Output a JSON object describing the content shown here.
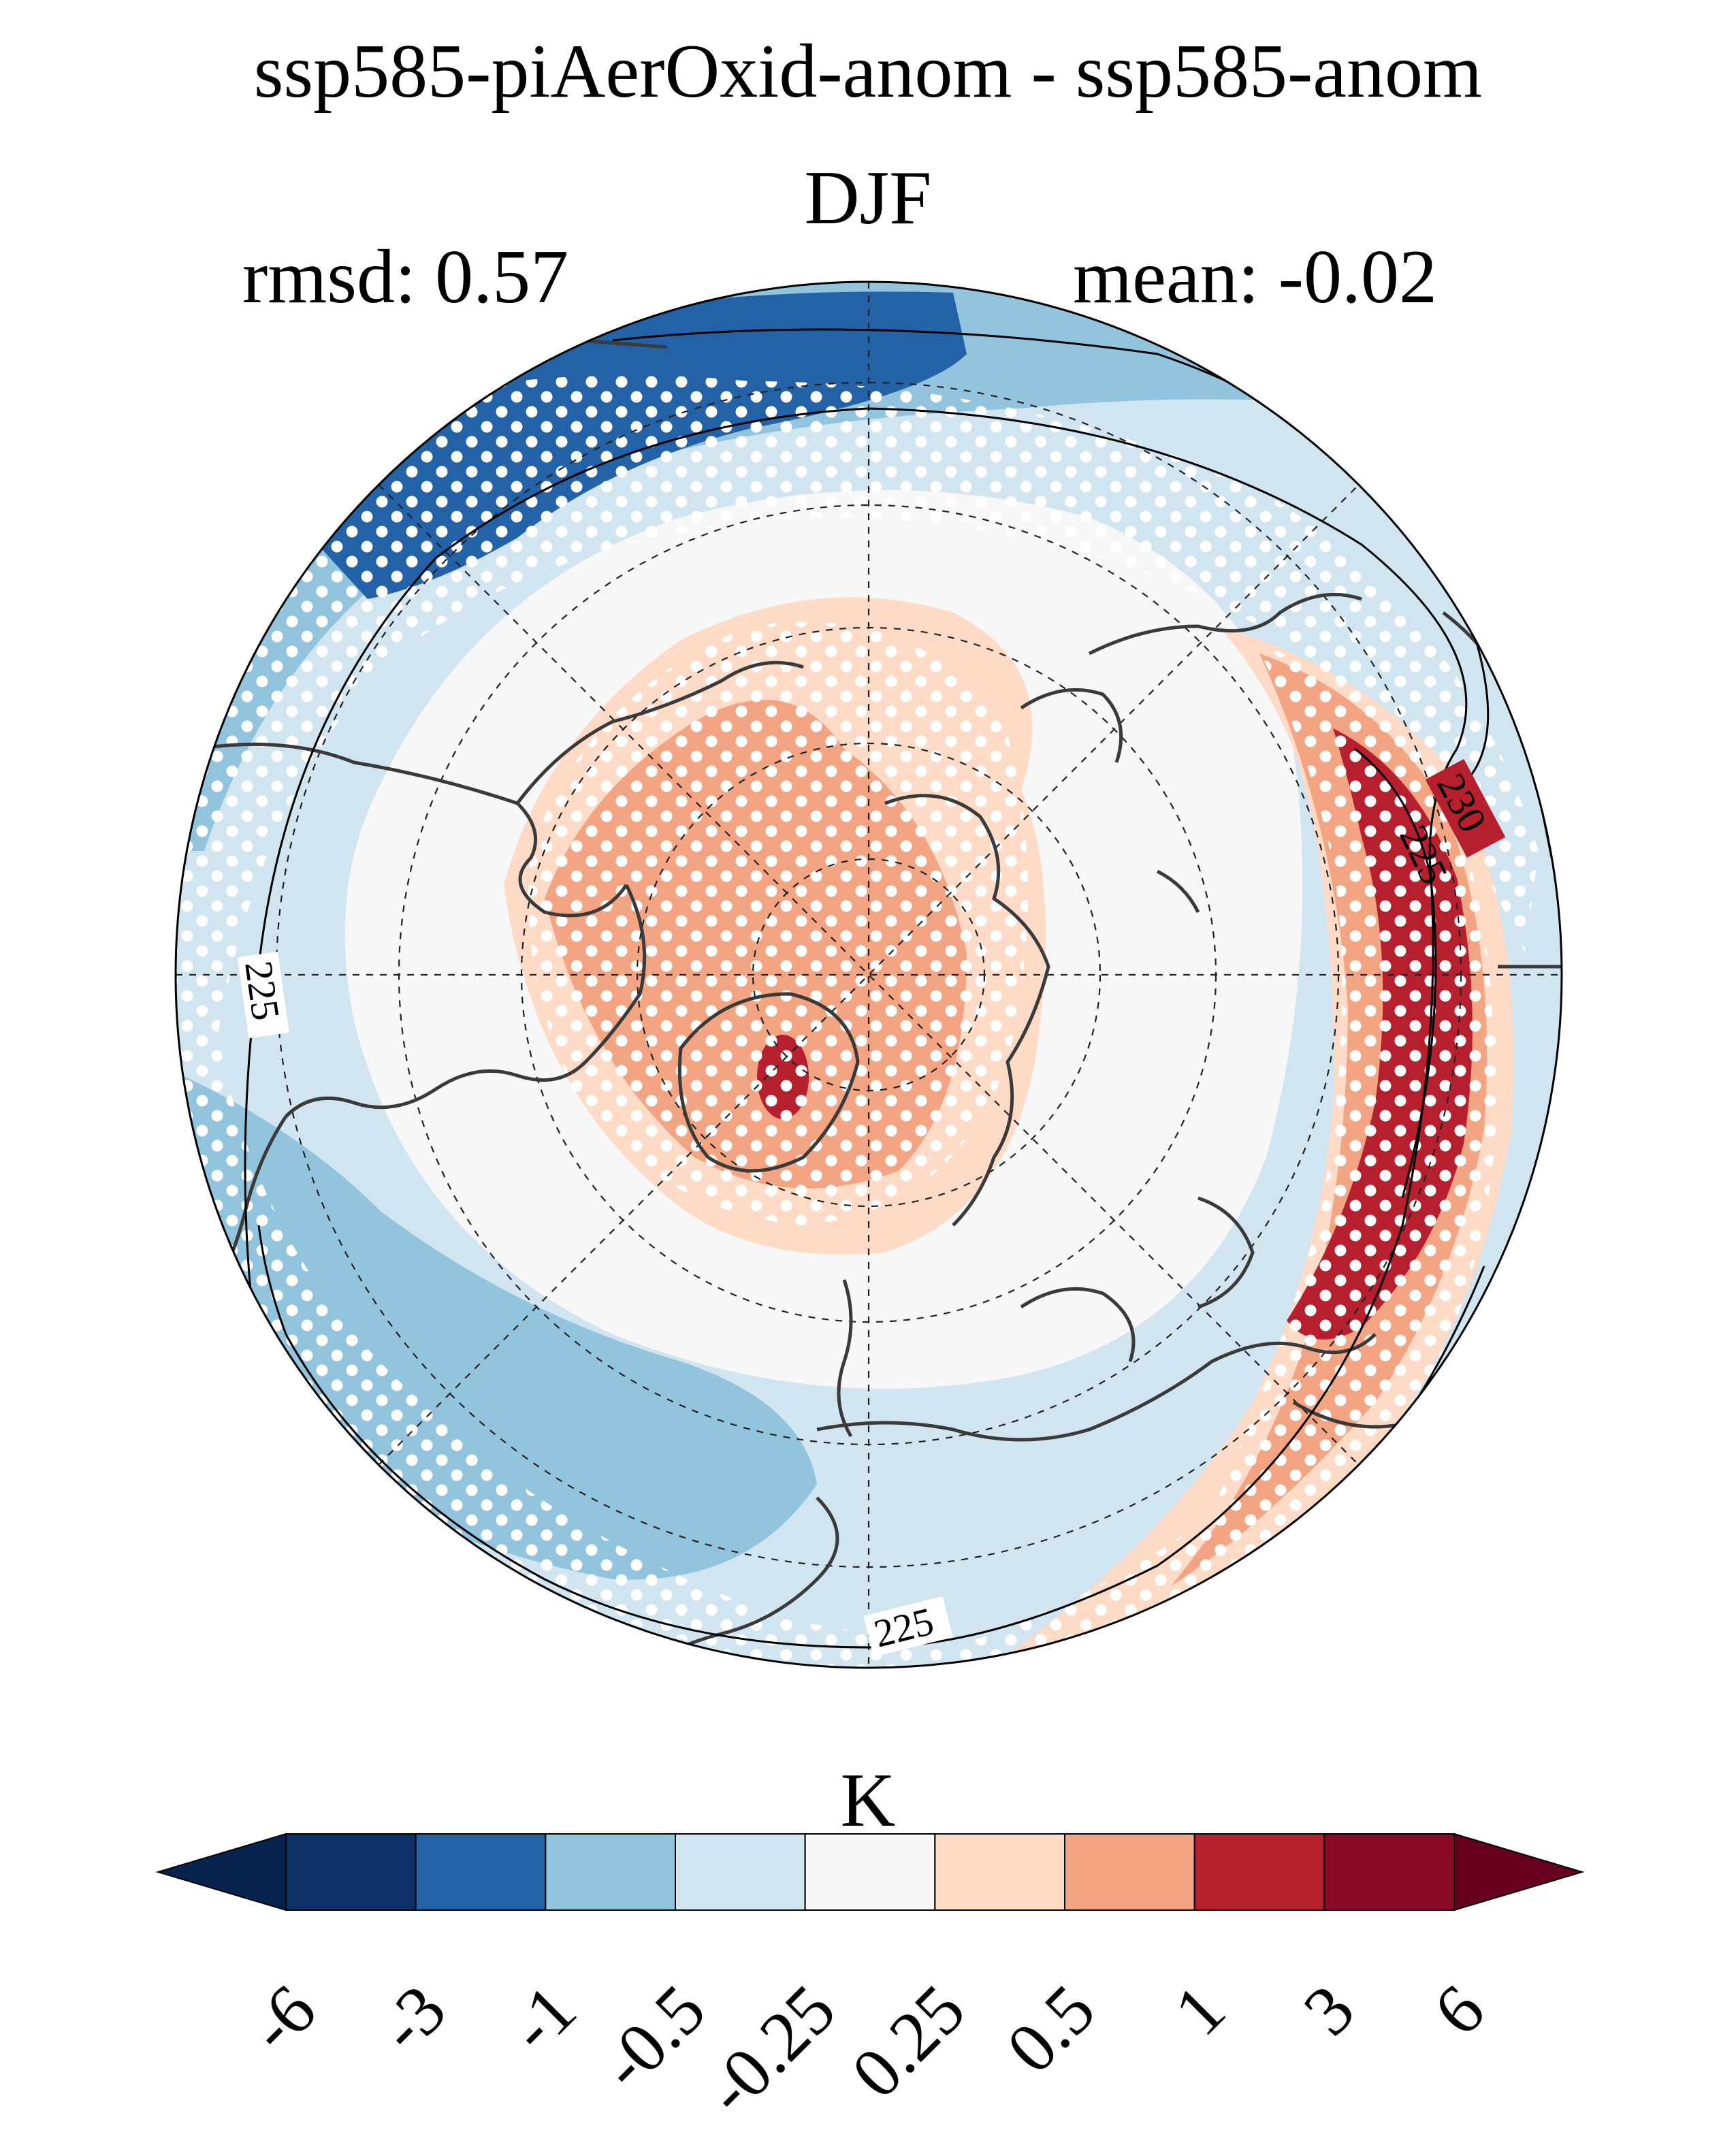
{
  "title": "ssp585-piAerOxid-anom - ssp585-anom",
  "season": "DJF",
  "stats": {
    "rmsd": "rmsd: 0.57",
    "mean": "mean: -0.02"
  },
  "projection": "north-polar-stereographic",
  "contour_labels": [
    "225",
    "230",
    "225",
    "225",
    "225"
  ],
  "colorbar": {
    "units": "K",
    "ticks": [
      "-6",
      "-3",
      "-1",
      "-0.5",
      "-0.25",
      "0.25",
      "0.5",
      "1",
      "3",
      "6"
    ],
    "colors": [
      "#08234e",
      "#0d3167",
      "#2462a8",
      "#92c4de",
      "#d1e5f0",
      "#f7f7f7",
      "#fddbc7",
      "#f3a482",
      "#b51f2e",
      "#8a0b25",
      "#67001f"
    ],
    "extend": "both"
  },
  "colors": {
    "dark_blue": "#2462a8",
    "mid_blue": "#92c4de",
    "light_blue": "#d1e5f0",
    "neutral": "#f7f7f7",
    "light_red": "#fddbc7",
    "mid_red": "#f3a482",
    "red": "#b51f2e",
    "coastline": "#3a3a3a"
  },
  "stippling": "white dots mark significance"
}
